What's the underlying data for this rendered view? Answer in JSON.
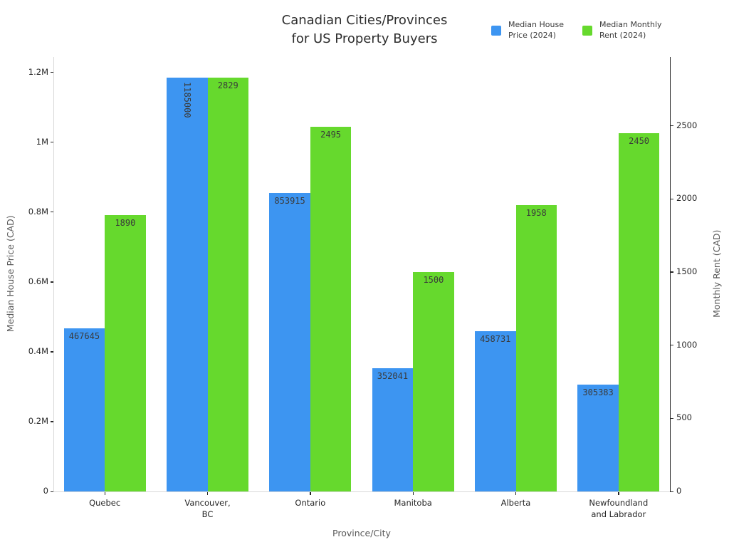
{
  "title": "Canadian Cities/Provinces\nfor US Property Buyers",
  "legend": [
    {
      "label": "Median House\nPrice (2024)",
      "color": "#3d95f1"
    },
    {
      "label": "Median Monthly\nRent (2024)",
      "color": "#66d92d"
    }
  ],
  "chart_data": {
    "type": "bar",
    "title": "Canadian Cities/Provinces for US Property Buyers",
    "categories": [
      "Quebec",
      "Vancouver,\nBC",
      "Ontario",
      "Manitoba",
      "Alberta",
      "Newfoundland\nand Labrador"
    ],
    "series": [
      {
        "name": "Median House Price (2024)",
        "axis": "left",
        "color": "#3d95f1",
        "values": [
          467645,
          1185000,
          853915,
          352041,
          458731,
          305383
        ]
      },
      {
        "name": "Median Monthly Rent (2024)",
        "axis": "right",
        "color": "#66d92d",
        "values": [
          1890,
          2829,
          2495,
          1500,
          1958,
          2450
        ]
      }
    ],
    "xlabel": "Province/City",
    "ylabel_left": "Median House Price (CAD)",
    "ylabel_right": "Monthly Rent (CAD)",
    "y_left": {
      "ylim": [
        0,
        1244250
      ],
      "ticks": [
        0,
        200000,
        400000,
        600000,
        800000,
        1000000,
        1200000
      ],
      "tick_labels": [
        "0",
        "0.2M",
        "0.4M",
        "0.6M",
        "0.8M",
        "1M",
        "1.2M"
      ]
    },
    "y_right": {
      "ylim": [
        0,
        2970
      ],
      "ticks": [
        0,
        500,
        1000,
        1500,
        2000,
        2500
      ],
      "tick_labels": [
        "0",
        "500",
        "1000",
        "1500",
        "2000",
        "2500"
      ]
    },
    "grid": false,
    "bar_labels": true,
    "legend_position": "top-right"
  }
}
